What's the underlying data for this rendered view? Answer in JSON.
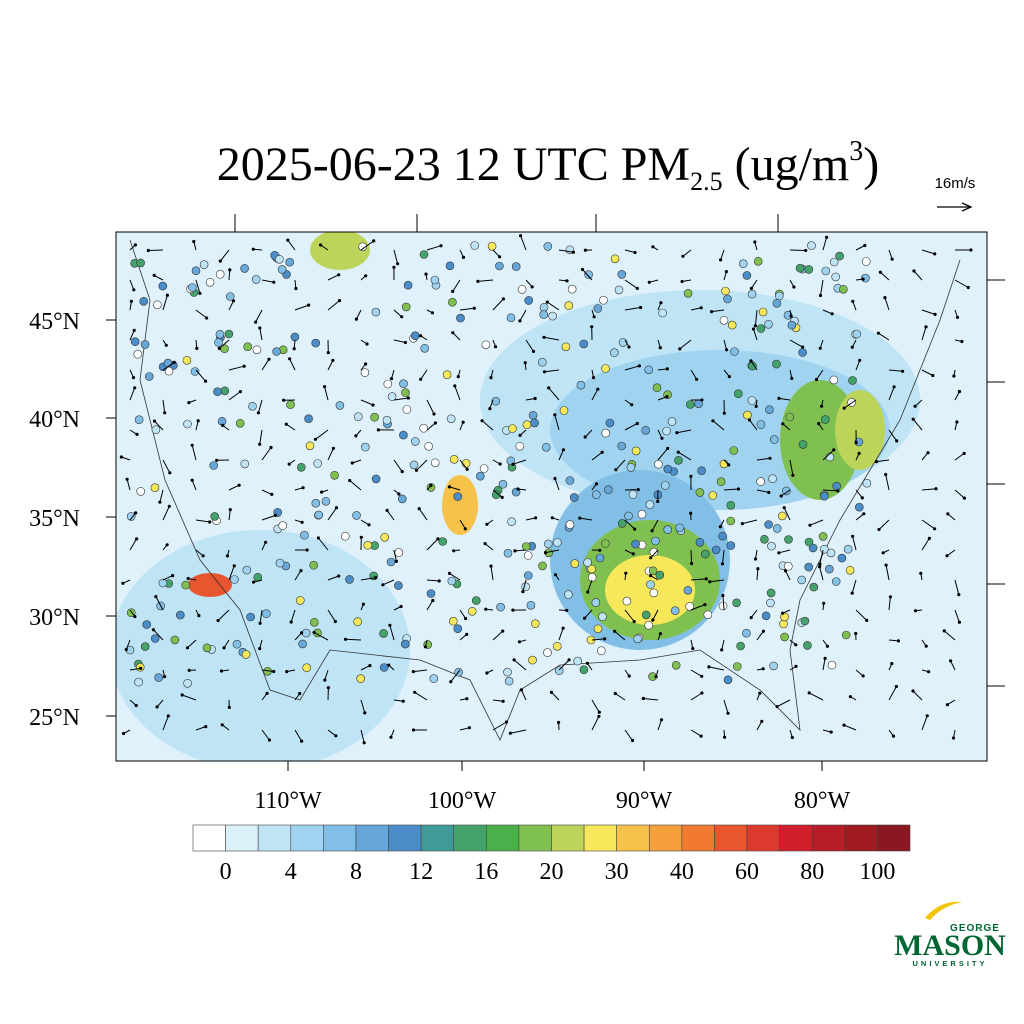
{
  "title": {
    "main": "2025-06-23 12 UTC PM",
    "subscript": "2.5",
    "unit_open": " (ug/m",
    "superscript": "3",
    "unit_close": ")"
  },
  "vector_reference": "16m/s",
  "lat_labels": [
    "45°N",
    "40°N",
    "35°N",
    "30°N",
    "25°N"
  ],
  "lon_labels": [
    "110°W",
    "100°W",
    "90°W",
    "80°W"
  ],
  "colorbar": {
    "labels": [
      "0",
      "4",
      "8",
      "12",
      "16",
      "20",
      "30",
      "40",
      "60",
      "80",
      "100"
    ],
    "colors": [
      "#ffffff",
      "#dcf0fa",
      "#bfe4f6",
      "#9fd3f0",
      "#82bfe6",
      "#66a6d8",
      "#4a8dc8",
      "#3f9a9a",
      "#44a36a",
      "#49b04a",
      "#80c050",
      "#bcd45a",
      "#f6e85a",
      "#f7c24a",
      "#f5a03c",
      "#f27a30",
      "#e9552e",
      "#dc3a2c",
      "#d01f2a",
      "#b81c26",
      "#a01a22",
      "#8a1820"
    ]
  },
  "logo": {
    "top": "GEORGE",
    "name": "MASON",
    "bottom": "UNIVERSITY"
  }
}
